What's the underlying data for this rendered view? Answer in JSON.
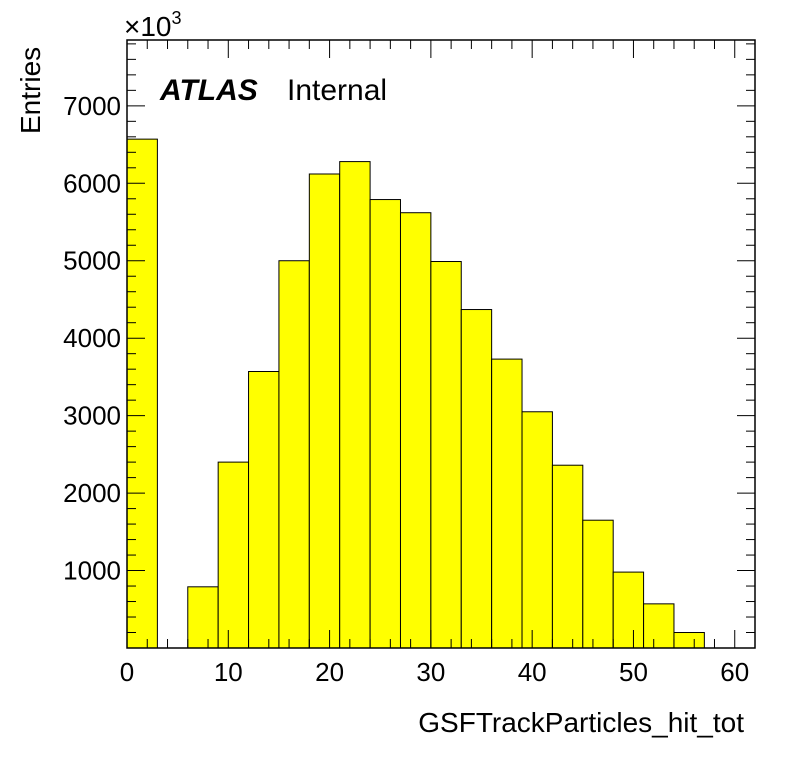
{
  "chart_data": {
    "type": "bar",
    "bin_width": 3,
    "bin_edges_start": [
      0,
      3,
      6,
      9,
      12,
      15,
      18,
      21,
      24,
      27,
      30,
      33,
      36,
      39,
      42,
      45,
      48,
      51,
      54,
      57
    ],
    "values": [
      6570,
      0,
      790,
      2400,
      3570,
      5000,
      6120,
      6280,
      5790,
      5620,
      4990,
      4370,
      3730,
      3050,
      2360,
      1650,
      980,
      570,
      200,
      0
    ],
    "xlabel": "GSFTrackParticles_hit_tot",
    "ylabel": "Entries",
    "xlim": [
      0,
      62
    ],
    "ylim": [
      0,
      7850
    ],
    "xticks": [
      0,
      10,
      20,
      30,
      40,
      50,
      60
    ],
    "yticks": [
      1000,
      2000,
      3000,
      4000,
      5000,
      6000,
      7000
    ],
    "y_scale_note": "×10",
    "y_scale_exponent": "3",
    "fill_color": "#ffff00",
    "edge_color": "#000000",
    "label_bold": "ATLAS",
    "label_text": "Internal"
  }
}
